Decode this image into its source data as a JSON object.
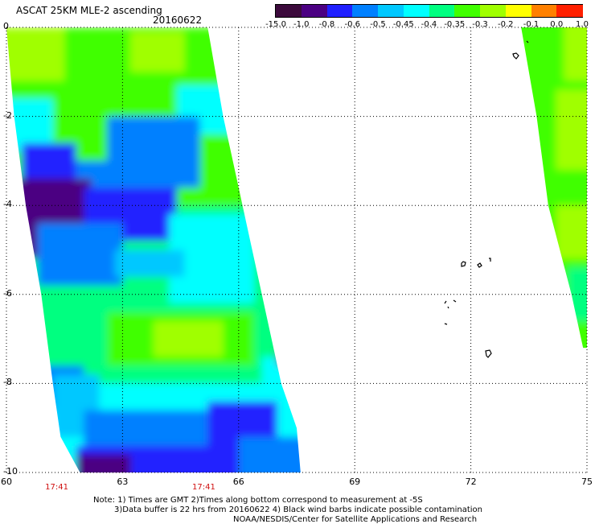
{
  "header": {
    "title": "ASCAT 25KM MLE-2 ascending",
    "date": "20160622"
  },
  "colorbar": {
    "labels": [
      "-15.0",
      "-1.0",
      "-0.8",
      "-0.6",
      "-0.5",
      "-0.45",
      "-0.4",
      "-0.35",
      "-0.3",
      "-0.2",
      "-0.1",
      "0.0",
      "1.0"
    ],
    "colors": [
      "#3c0a3c",
      "#4b0082",
      "#2020ff",
      "#0080ff",
      "#00c8ff",
      "#00ffff",
      "#00ff80",
      "#40ff00",
      "#a0ff00",
      "#ffff00",
      "#ff8000",
      "#ff2000"
    ]
  },
  "axes": {
    "x_ticks": [
      "60",
      "63",
      "66",
      "69",
      "72",
      "75"
    ],
    "y_ticks": [
      "0",
      "-2",
      "-4",
      "-6",
      "-8",
      "-10"
    ],
    "lon_range": [
      60,
      75
    ],
    "lat_range": [
      -10,
      0
    ],
    "grid": "dotted"
  },
  "time_labels": [
    {
      "text": "17:41",
      "lon": 61.3
    },
    {
      "text": "17:41",
      "lon": 65.1
    }
  ],
  "notes": {
    "line1": "Note: 1) Times are GMT 2)Times along bottom correspond to measurement at -5S",
    "line2": "3)Data buffer is 22 hrs from 20160622 4) Black wind barbs indicate possible contamination",
    "line3": "NOAA/NESDIS/Center for Satellite Applications and Research"
  },
  "map_data": {
    "swaths": [
      {
        "name": "west-swath",
        "west_edge": [
          [
            0,
            60.0
          ],
          [
            -2,
            60.2
          ],
          [
            -4,
            60.5
          ],
          [
            -6,
            60.9
          ],
          [
            -8,
            61.2
          ],
          [
            -9.2,
            61.4
          ],
          [
            -10,
            61.9
          ]
        ],
        "east_edge": [
          [
            0,
            65.2
          ],
          [
            -2,
            65.6
          ],
          [
            -4,
            66.1
          ],
          [
            -6,
            66.6
          ],
          [
            -8,
            67.1
          ],
          [
            -9,
            67.5
          ],
          [
            -10,
            67.6
          ]
        ]
      },
      {
        "name": "east-swath",
        "west_edge": [
          [
            0,
            73.3
          ],
          [
            -2,
            73.7
          ],
          [
            -4,
            74.0
          ],
          [
            -6,
            74.6
          ],
          [
            -7.2,
            74.9
          ]
        ],
        "east_edge": [
          [
            0,
            75.0
          ],
          [
            -7.2,
            75.0
          ]
        ]
      }
    ],
    "regions": [
      {
        "lat": [
          -4,
          0
        ],
        "lon": [
          59.5,
          68.5
        ],
        "level": "-0.35"
      },
      {
        "lat": [
          -8,
          -4
        ],
        "lon": [
          59.5,
          68.5
        ],
        "level": "-0.4"
      },
      {
        "lat": [
          -10.2,
          -8
        ],
        "lon": [
          59.5,
          68.5
        ],
        "level": "-0.45"
      },
      {
        "lat": [
          -1.2,
          0
        ],
        "lon": [
          59.5,
          61.5
        ],
        "level": "-0.3"
      },
      {
        "lat": [
          -2.8,
          -1.6
        ],
        "lon": [
          59.5,
          61.2
        ],
        "level": "-0.45"
      },
      {
        "lat": [
          -2.4,
          -1.3
        ],
        "lon": [
          64.4,
          66.2
        ],
        "level": "-0.45"
      },
      {
        "lat": [
          -1.0,
          -0.1
        ],
        "lon": [
          63.2,
          64.6
        ],
        "level": "-0.3"
      },
      {
        "lat": [
          -3.6,
          -2.0
        ],
        "lon": [
          62.6,
          65.0
        ],
        "level": "-0.6"
      },
      {
        "lat": [
          -4.2,
          -3.0
        ],
        "lon": [
          60.8,
          62.8
        ],
        "level": "-0.6"
      },
      {
        "lat": [
          -5.2,
          -3.4
        ],
        "lon": [
          60.2,
          62.2
        ],
        "level": "-1.0"
      },
      {
        "lat": [
          -4.8,
          -3.6
        ],
        "lon": [
          62.0,
          64.4
        ],
        "level": "-0.8"
      },
      {
        "lat": [
          -3.4,
          -2.6
        ],
        "lon": [
          60.4,
          61.8
        ],
        "level": "-0.8"
      },
      {
        "lat": [
          -5.8,
          -4.4
        ],
        "lon": [
          60.8,
          63.0
        ],
        "level": "-0.6"
      },
      {
        "lat": [
          -6.2,
          -4.2
        ],
        "lon": [
          64.2,
          66.4
        ],
        "level": "-0.45"
      },
      {
        "lat": [
          -5.6,
          -5.0
        ],
        "lon": [
          62.8,
          64.6
        ],
        "level": "-0.5"
      },
      {
        "lat": [
          -7.6,
          -6.4
        ],
        "lon": [
          62.6,
          66.4
        ],
        "level": "-0.35"
      },
      {
        "lat": [
          -7.4,
          -6.6
        ],
        "lon": [
          63.8,
          65.6
        ],
        "level": "-0.3"
      },
      {
        "lat": [
          -8.6,
          -7.6
        ],
        "lon": [
          60.8,
          62.0
        ],
        "level": "-0.6"
      },
      {
        "lat": [
          -9.2,
          -7.8
        ],
        "lon": [
          61.2,
          62.4
        ],
        "level": "-0.5"
      },
      {
        "lat": [
          -8.8,
          -7.4
        ],
        "lon": [
          66.6,
          67.6
        ],
        "level": "-0.45"
      },
      {
        "lat": [
          -9.4,
          -8.6
        ],
        "lon": [
          62.0,
          66.8
        ],
        "level": "-0.6"
      },
      {
        "lat": [
          -10.2,
          -9.4
        ],
        "lon": [
          61.8,
          67.8
        ],
        "level": "-0.8"
      },
      {
        "lat": [
          -10.2,
          -9.6
        ],
        "lon": [
          61.8,
          63.2
        ],
        "level": "-1.0"
      },
      {
        "lat": [
          -9.8,
          -8.4
        ],
        "lon": [
          65.2,
          67.0
        ],
        "level": "-0.8"
      },
      {
        "lat": [
          -10.2,
          -9.2
        ],
        "lon": [
          66.0,
          67.8
        ],
        "level": "-0.6"
      },
      {
        "lat": [
          -7.6,
          -7.2
        ],
        "lon": [
          67.0,
          67.4
        ],
        "level": "-1.0"
      },
      {
        "lat": [
          -8.2,
          0.2
        ],
        "lon": [
          73.0,
          75.2
        ],
        "level": "-0.35"
      },
      {
        "lat": [
          -1.2,
          0.2
        ],
        "lon": [
          74.4,
          75.2
        ],
        "level": "-0.3"
      },
      {
        "lat": [
          -3.2,
          -1.4
        ],
        "lon": [
          74.2,
          75.2
        ],
        "level": "-0.3"
      },
      {
        "lat": [
          -5.2,
          -4.0
        ],
        "lon": [
          74.2,
          75.2
        ],
        "level": "-0.3"
      },
      {
        "lat": [
          -6.6,
          -5.4
        ],
        "lon": [
          74.5,
          75.2
        ],
        "level": "-0.4"
      }
    ]
  }
}
